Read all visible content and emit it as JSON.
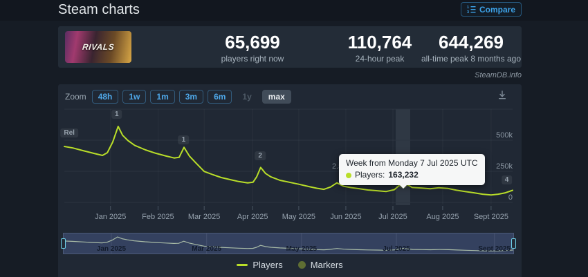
{
  "page": {
    "title": "Steam charts",
    "watermark": "SteamDB.info"
  },
  "compare_button": {
    "label": "Compare",
    "icon": "ordered-list-icon",
    "color": "#3da2e8"
  },
  "stats": {
    "game_title": "RIVALS",
    "items": [
      {
        "value": "65,699",
        "label": "players right now"
      },
      {
        "value": "110,764",
        "label": "24-hour peak"
      },
      {
        "value": "644,269",
        "label": "all-time peak 8 months ago"
      }
    ]
  },
  "toolbar": {
    "zoom_label": "Zoom",
    "buttons": [
      {
        "label": "48h",
        "state": "enabled"
      },
      {
        "label": "1w",
        "state": "enabled"
      },
      {
        "label": "1m",
        "state": "enabled"
      },
      {
        "label": "3m",
        "state": "enabled"
      },
      {
        "label": "6m",
        "state": "enabled"
      },
      {
        "label": "1y",
        "state": "disabled"
      },
      {
        "label": "max",
        "state": "active"
      }
    ],
    "download_icon": "download-icon"
  },
  "chart_data": {
    "type": "line",
    "title": "",
    "xlabel": "",
    "ylabel": "Players",
    "legend_position": "bottom",
    "grid": true,
    "y_unit": "thousands of players",
    "ylim": [
      0,
      750000
    ],
    "y_ticks": [
      {
        "label": "",
        "v": 750
      },
      {
        "label": "500k",
        "v": 500
      },
      {
        "label": "250k",
        "v": 250
      },
      {
        "label": "0",
        "v": 0
      }
    ],
    "x_ticks": [
      {
        "label": "Jan 2025",
        "t": 0.103
      },
      {
        "label": "Feb 2025",
        "t": 0.209
      },
      {
        "label": "Mar 2025",
        "t": 0.312
      },
      {
        "label": "Apr 2025",
        "t": 0.42
      },
      {
        "label": "May 2025",
        "t": 0.523
      },
      {
        "label": "Jun 2025",
        "t": 0.628
      },
      {
        "label": "Jul 2025",
        "t": 0.733
      },
      {
        "label": "Aug 2025",
        "t": 0.844
      },
      {
        "label": "Sept 2025",
        "t": 0.952
      }
    ],
    "series": [
      {
        "name": "Players",
        "color": "#b9de29",
        "points_t_vk": [
          [
            0.0,
            450
          ],
          [
            0.019,
            438
          ],
          [
            0.042,
            416
          ],
          [
            0.065,
            395
          ],
          [
            0.085,
            378
          ],
          [
            0.096,
            400
          ],
          [
            0.108,
            486
          ],
          [
            0.12,
            611
          ],
          [
            0.13,
            540
          ],
          [
            0.142,
            497
          ],
          [
            0.157,
            459
          ],
          [
            0.181,
            422
          ],
          [
            0.204,
            395
          ],
          [
            0.227,
            373
          ],
          [
            0.245,
            357
          ],
          [
            0.256,
            362
          ],
          [
            0.267,
            443
          ],
          [
            0.279,
            373
          ],
          [
            0.293,
            319
          ],
          [
            0.312,
            249
          ],
          [
            0.332,
            222
          ],
          [
            0.35,
            200
          ],
          [
            0.369,
            184
          ],
          [
            0.389,
            168
          ],
          [
            0.409,
            157
          ],
          [
            0.421,
            162
          ],
          [
            0.429,
            205
          ],
          [
            0.438,
            281
          ],
          [
            0.449,
            232
          ],
          [
            0.461,
            205
          ],
          [
            0.481,
            178
          ],
          [
            0.502,
            162
          ],
          [
            0.523,
            146
          ],
          [
            0.545,
            128
          ],
          [
            0.563,
            114
          ],
          [
            0.579,
            105
          ],
          [
            0.594,
            124
          ],
          [
            0.608,
            157
          ],
          [
            0.623,
            130
          ],
          [
            0.64,
            119
          ],
          [
            0.659,
            110
          ],
          [
            0.677,
            100
          ],
          [
            0.698,
            94
          ],
          [
            0.718,
            88
          ],
          [
            0.736,
            102
          ],
          [
            0.756,
            163.232
          ],
          [
            0.776,
            120
          ],
          [
            0.798,
            115
          ],
          [
            0.816,
            110
          ],
          [
            0.836,
            118
          ],
          [
            0.856,
            112
          ],
          [
            0.875,
            98
          ],
          [
            0.894,
            88
          ],
          [
            0.914,
            77
          ],
          [
            0.933,
            66
          ],
          [
            0.952,
            60
          ],
          [
            0.968,
            66
          ],
          [
            0.984,
            77
          ],
          [
            1.0,
            97
          ]
        ]
      }
    ],
    "markers_series_name": "Markers",
    "markers_color": "#5f6e33",
    "marker_badges": [
      {
        "label": "Rel",
        "t": 0.011,
        "top": 64
      },
      {
        "label": "1",
        "t": 0.117,
        "top": 37
      },
      {
        "label": "1",
        "t": 0.266,
        "top": 74
      },
      {
        "label": "2",
        "t": 0.437,
        "top": 97
      },
      {
        "label": "4",
        "t": 0.987,
        "top": 132
      }
    ],
    "occluded_gridline_label": "2.5",
    "hover": {
      "point_index": 45,
      "t": 0.756,
      "value": 163.232,
      "tooltip_title": "Week from Monday 7 Jul 2025 UTC",
      "tooltip_series": "Players:",
      "tooltip_value": "163,232"
    },
    "legend": [
      "Players",
      "Markers"
    ]
  },
  "navigator": {
    "labels": [
      {
        "label": "Jan 2025",
        "t": 0.106
      },
      {
        "label": "Mar 2025",
        "t": 0.318
      },
      {
        "label": "May 2025",
        "t": 0.529
      },
      {
        "label": "Jul 2025",
        "t": 0.74
      },
      {
        "label": "Sept 2025",
        "t": 0.958
      }
    ]
  }
}
